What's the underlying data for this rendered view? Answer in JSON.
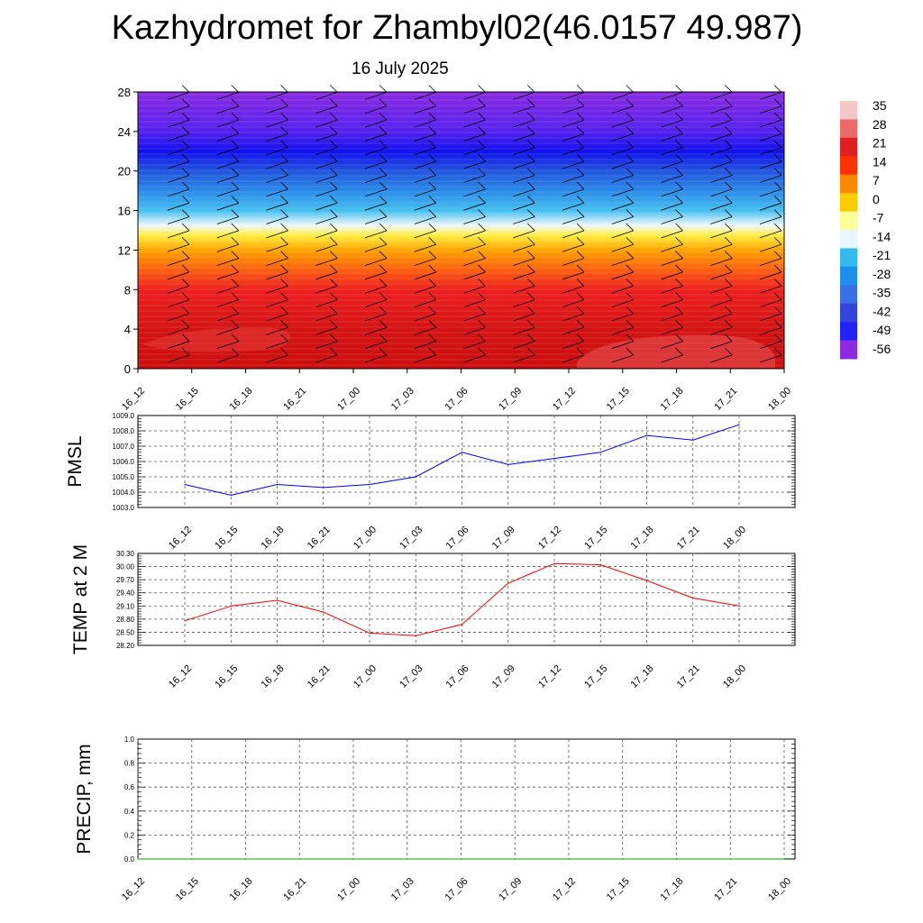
{
  "title": "Kazhydromet for Zhambyl02(46.0157 49.987)",
  "subtitle": "16 July 2025",
  "colors": {
    "pmsl_line": "#0000ff",
    "temp_line": "#ff0000",
    "precip_line": "#00aa00",
    "grid": "#555555"
  },
  "chart_data": [
    {
      "type": "heatmap",
      "title": "",
      "xlabel": "",
      "ylabel": "",
      "x": [
        "16_12",
        "16_15",
        "16_18",
        "16_21",
        "17_00",
        "17_03",
        "17_06",
        "17_09",
        "17_12",
        "17_15",
        "17_18",
        "17_21",
        "18_00"
      ],
      "ylim": [
        0,
        28
      ],
      "yticks": [
        0,
        4,
        8,
        12,
        16,
        20,
        24,
        28
      ],
      "colorbar": {
        "labels": [
          "35",
          "28",
          "21",
          "14",
          "7",
          "0",
          "-7",
          "-14",
          "-21",
          "-28",
          "-35",
          "-42",
          "-49",
          "-56"
        ],
        "colors": [
          "#f4c6c6",
          "#ee6a6a",
          "#e02020",
          "#ff3300",
          "#ff8800",
          "#ffcc00",
          "#ffff99",
          "#e8f6ff",
          "#33bbee",
          "#1f8fee",
          "#3a70e6",
          "#3344dd",
          "#2222ff",
          "#8a2be2"
        ]
      },
      "bands": [
        {
          "y": 0,
          "color": "#cc0e0e"
        },
        {
          "y": 4,
          "color": "#d41414"
        },
        {
          "y": 8,
          "color": "#ee2020"
        },
        {
          "y": 10,
          "color": "#ff6010"
        },
        {
          "y": 12,
          "color": "#ffa500"
        },
        {
          "y": 13.5,
          "color": "#ffee44"
        },
        {
          "y": 14.5,
          "color": "#f0f8ff"
        },
        {
          "y": 16,
          "color": "#44c0f0"
        },
        {
          "y": 18,
          "color": "#2a8ae8"
        },
        {
          "y": 20,
          "color": "#2255dd"
        },
        {
          "y": 22,
          "color": "#1111ee"
        },
        {
          "y": 24,
          "color": "#5522ee"
        },
        {
          "y": 28,
          "color": "#8a2be2"
        }
      ]
    },
    {
      "type": "line",
      "title": "",
      "ylabel": "PMSL",
      "xlabel": "",
      "categories": [
        "16_12",
        "16_15",
        "16_18",
        "16_21",
        "17_00",
        "17_03",
        "17_06",
        "17_09",
        "17_12",
        "17_15",
        "17_18",
        "17_21",
        "18_00"
      ],
      "series": [
        {
          "values": [
            1004.5,
            1003.8,
            1004.5,
            1004.3,
            1004.5,
            1005.0,
            1006.6,
            1005.8,
            1006.2,
            1006.6,
            1007.7,
            1007.4,
            1008.4
          ]
        }
      ],
      "ylim": [
        1003.0,
        1009.0
      ],
      "yticks": [
        "1003.0",
        "1004.0",
        "1005.0",
        "1006.0",
        "1007.0",
        "1008.0",
        "1009.0"
      ],
      "grid": true
    },
    {
      "type": "line",
      "title": "",
      "ylabel": "TEMP at 2 M",
      "xlabel": "",
      "categories": [
        "16_12",
        "16_15",
        "16_18",
        "16_21",
        "17_00",
        "17_03",
        "17_06",
        "17_09",
        "17_12",
        "17_15",
        "17_18",
        "17_21",
        "18_00"
      ],
      "series": [
        {
          "values": [
            28.76,
            29.1,
            29.23,
            28.96,
            28.48,
            28.42,
            28.68,
            29.62,
            30.07,
            30.04,
            29.68,
            29.28,
            29.1
          ]
        }
      ],
      "ylim": [
        28.2,
        30.3
      ],
      "yticks": [
        "28.20",
        "28.50",
        "28.80",
        "29.10",
        "29.40",
        "29.70",
        "30.00",
        "30.30"
      ],
      "grid": true
    },
    {
      "type": "line",
      "title": "",
      "ylabel": "PRECIP, mm",
      "xlabel": "",
      "categories": [
        "16_12",
        "16_15",
        "16_18",
        "16_21",
        "17_00",
        "17_03",
        "17_06",
        "17_09",
        "17_12",
        "17_15",
        "17_18",
        "17_21",
        "18_00"
      ],
      "series": [
        {
          "values": [
            0,
            0,
            0,
            0,
            0,
            0,
            0,
            0,
            0,
            0,
            0,
            0,
            0
          ]
        }
      ],
      "ylim": [
        0.0,
        1.0
      ],
      "yticks": [
        "0.0",
        "0.2",
        "0.4",
        "0.6",
        "0.8",
        "1.0"
      ],
      "grid": true
    }
  ]
}
